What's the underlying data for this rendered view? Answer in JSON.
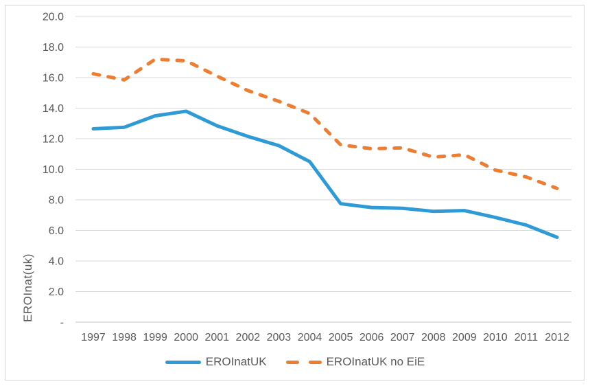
{
  "chart_data": {
    "type": "line",
    "title": "",
    "xlabel": "",
    "ylabel": "EROInat(uk)",
    "x": [
      "1997",
      "1998",
      "1999",
      "2000",
      "2001",
      "2002",
      "2003",
      "2004",
      "2005",
      "2006",
      "2007",
      "2008",
      "2009",
      "2010",
      "2011",
      "2012"
    ],
    "series": [
      {
        "name": "EROInatUK",
        "style": "solid",
        "color": "#2e9ad6",
        "values": [
          12.65,
          12.75,
          13.5,
          13.8,
          12.85,
          12.15,
          11.55,
          10.5,
          7.75,
          7.5,
          7.45,
          7.25,
          7.3,
          6.85,
          6.35,
          5.55
        ]
      },
      {
        "name": "EROInatUK no EiE",
        "style": "dashed",
        "color": "#ed7d31",
        "values": [
          16.25,
          15.85,
          17.2,
          17.1,
          16.1,
          15.15,
          14.45,
          13.65,
          11.6,
          11.35,
          11.4,
          10.8,
          10.95,
          9.95,
          9.5,
          8.75
        ]
      }
    ],
    "ylim": [
      0,
      20
    ],
    "ytick_values": [
      0,
      2,
      4,
      6,
      8,
      10,
      12,
      14,
      16,
      18,
      20
    ],
    "ytick_labels": [
      "-",
      "2.0",
      "4.0",
      "6.0",
      "8.0",
      "10.0",
      "12.0",
      "14.0",
      "16.0",
      "18.0",
      "20.0"
    ],
    "grid": true,
    "legend_position": "bottom"
  },
  "colors": {
    "grid_line": "#d9d9d9",
    "axis_line": "#c6c6c6",
    "label_text": "#595959",
    "frame_border": "#d7d7d7"
  }
}
